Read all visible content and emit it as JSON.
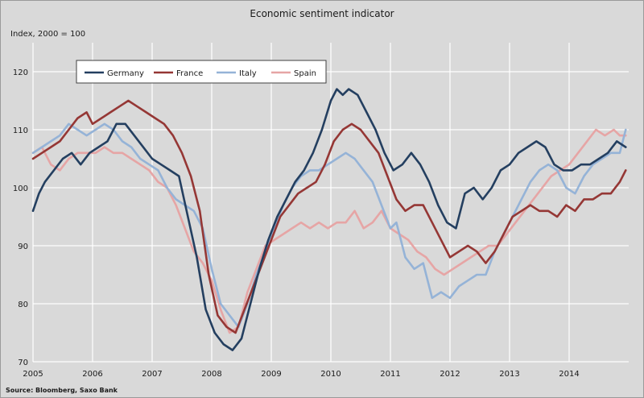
{
  "chart_data": {
    "type": "line",
    "title": "Economic sentiment indicator",
    "ylabel": "Index, 2000 = 100",
    "xlabel": "",
    "source": "Source: Bloomberg, Saxo Bank",
    "ylim": [
      70,
      125
    ],
    "yticks": [
      70,
      80,
      90,
      100,
      110,
      120
    ],
    "xlim": [
      2005,
      2015
    ],
    "xticks": [
      "2005",
      "2006",
      "2007",
      "2008",
      "2009",
      "2010",
      "2011",
      "2012",
      "2013",
      "2014"
    ],
    "grid": true,
    "legend_position": "top-left",
    "series": [
      {
        "name": "Germany",
        "color": "#243f60",
        "x": [
          2005.0,
          2005.1,
          2005.2,
          2005.35,
          2005.5,
          2005.65,
          2005.8,
          2005.95,
          2006.1,
          2006.25,
          2006.4,
          2006.55,
          2006.7,
          2006.85,
          2007.0,
          2007.15,
          2007.3,
          2007.45,
          2007.6,
          2007.75,
          2007.9,
          2008.05,
          2008.2,
          2008.35,
          2008.5,
          2008.65,
          2008.8,
          2008.95,
          2009.1,
          2009.25,
          2009.4,
          2009.55,
          2009.7,
          2009.85,
          2010.0,
          2010.1,
          2010.2,
          2010.3,
          2010.45,
          2010.6,
          2010.75,
          2010.9,
          2011.05,
          2011.2,
          2011.35,
          2011.5,
          2011.65,
          2011.8,
          2011.95,
          2012.1,
          2012.25,
          2012.4,
          2012.55,
          2012.7,
          2012.85,
          2013.0,
          2013.15,
          2013.3,
          2013.45,
          2013.6,
          2013.75,
          2013.9,
          2014.05,
          2014.2,
          2014.35,
          2014.5,
          2014.65,
          2014.8,
          2014.95
        ],
        "values": [
          96,
          99,
          101,
          103,
          105,
          106,
          104,
          106,
          107,
          108,
          111,
          111,
          109,
          107,
          105,
          104,
          103,
          102,
          95,
          88,
          79,
          75,
          73,
          72,
          74,
          80,
          86,
          91,
          95,
          98,
          101,
          103,
          106,
          110,
          115,
          117,
          116,
          117,
          116,
          113,
          110,
          106,
          103,
          104,
          106,
          104,
          101,
          97,
          94,
          93,
          99,
          100,
          98,
          100,
          103,
          104,
          106,
          107,
          108,
          107,
          104,
          103,
          103,
          104,
          104,
          105,
          106,
          108,
          107
        ]
      },
      {
        "name": "France",
        "color": "#953735",
        "x": [
          2005.0,
          2005.15,
          2005.3,
          2005.45,
          2005.6,
          2005.75,
          2005.9,
          2006.0,
          2006.15,
          2006.3,
          2006.45,
          2006.6,
          2006.75,
          2006.9,
          2007.05,
          2007.2,
          2007.35,
          2007.5,
          2007.65,
          2007.8,
          2007.95,
          2008.1,
          2008.25,
          2008.4,
          2008.55,
          2008.7,
          2008.85,
          2009.0,
          2009.15,
          2009.3,
          2009.45,
          2009.6,
          2009.75,
          2009.9,
          2010.05,
          2010.2,
          2010.35,
          2010.5,
          2010.65,
          2010.8,
          2010.95,
          2011.1,
          2011.25,
          2011.4,
          2011.55,
          2011.7,
          2011.85,
          2012.0,
          2012.15,
          2012.3,
          2012.45,
          2012.6,
          2012.75,
          2012.9,
          2013.05,
          2013.2,
          2013.35,
          2013.5,
          2013.65,
          2013.8,
          2013.95,
          2014.1,
          2014.25,
          2014.4,
          2014.55,
          2014.7,
          2014.85,
          2014.95
        ],
        "values": [
          105,
          106,
          107,
          108,
          110,
          112,
          113,
          111,
          112,
          113,
          114,
          115,
          114,
          113,
          112,
          111,
          109,
          106,
          102,
          96,
          85,
          78,
          76,
          75,
          79,
          83,
          87,
          91,
          95,
          97,
          99,
          100,
          101,
          104,
          108,
          110,
          111,
          110,
          108,
          106,
          102,
          98,
          96,
          97,
          97,
          94,
          91,
          88,
          89,
          90,
          89,
          87,
          89,
          92,
          95,
          96,
          97,
          96,
          96,
          95,
          97,
          96,
          98,
          98,
          99,
          99,
          101,
          103
        ]
      },
      {
        "name": "Italy",
        "color": "#95b3d7",
        "x": [
          2005.0,
          2005.15,
          2005.3,
          2005.45,
          2005.6,
          2005.75,
          2005.9,
          2006.05,
          2006.2,
          2006.35,
          2006.5,
          2006.65,
          2006.8,
          2006.95,
          2007.1,
          2007.25,
          2007.4,
          2007.55,
          2007.7,
          2007.85,
          2008.0,
          2008.15,
          2008.3,
          2008.45,
          2008.6,
          2008.75,
          2008.9,
          2009.05,
          2009.2,
          2009.35,
          2009.5,
          2009.65,
          2009.8,
          2009.95,
          2010.1,
          2010.25,
          2010.4,
          2010.55,
          2010.7,
          2010.85,
          2011.0,
          2011.1,
          2011.25,
          2011.4,
          2011.55,
          2011.7,
          2011.85,
          2012.0,
          2012.15,
          2012.3,
          2012.45,
          2012.6,
          2012.75,
          2012.9,
          2013.05,
          2013.2,
          2013.35,
          2013.5,
          2013.65,
          2013.8,
          2013.95,
          2014.1,
          2014.25,
          2014.4,
          2014.55,
          2014.7,
          2014.85,
          2014.95
        ],
        "values": [
          106,
          107,
          108,
          109,
          111,
          110,
          109,
          110,
          111,
          110,
          108,
          107,
          105,
          104,
          103,
          100,
          98,
          97,
          96,
          93,
          86,
          80,
          78,
          76,
          80,
          85,
          89,
          93,
          97,
          100,
          102,
          103,
          103,
          104,
          105,
          106,
          105,
          103,
          101,
          97,
          93,
          94,
          88,
          86,
          87,
          81,
          82,
          81,
          83,
          84,
          85,
          85,
          89,
          92,
          95,
          98,
          101,
          103,
          104,
          103,
          100,
          99,
          102,
          104,
          105,
          106,
          106,
          110
        ]
      },
      {
        "name": "Spain",
        "color": "#e6a5a5",
        "x": [
          2005.0,
          2005.15,
          2005.3,
          2005.45,
          2005.6,
          2005.75,
          2005.9,
          2006.05,
          2006.2,
          2006.35,
          2006.5,
          2006.65,
          2006.8,
          2006.95,
          2007.1,
          2007.25,
          2007.4,
          2007.55,
          2007.7,
          2007.85,
          2008.0,
          2008.15,
          2008.3,
          2008.45,
          2008.6,
          2008.75,
          2008.9,
          2009.05,
          2009.2,
          2009.35,
          2009.5,
          2009.65,
          2009.8,
          2009.95,
          2010.1,
          2010.25,
          2010.4,
          2010.55,
          2010.7,
          2010.85,
          2011.0,
          2011.15,
          2011.3,
          2011.45,
          2011.6,
          2011.75,
          2011.9,
          2012.05,
          2012.2,
          2012.35,
          2012.5,
          2012.65,
          2012.8,
          2012.95,
          2013.1,
          2013.25,
          2013.4,
          2013.55,
          2013.7,
          2013.85,
          2014.0,
          2014.15,
          2014.3,
          2014.45,
          2014.6,
          2014.75,
          2014.85,
          2014.95
        ],
        "values": [
          106,
          107,
          104,
          103,
          105,
          106,
          106,
          106,
          107,
          106,
          106,
          105,
          104,
          103,
          101,
          100,
          97,
          93,
          89,
          87,
          84,
          79,
          75,
          76,
          82,
          86,
          90,
          91,
          92,
          93,
          94,
          93,
          94,
          93,
          94,
          94,
          96,
          93,
          94,
          96,
          93,
          92,
          91,
          89,
          88,
          86,
          85,
          86,
          87,
          88,
          89,
          90,
          90,
          92,
          94,
          96,
          98,
          100,
          102,
          103,
          104,
          106,
          108,
          110,
          109,
          110,
          109,
          109
        ]
      }
    ]
  }
}
